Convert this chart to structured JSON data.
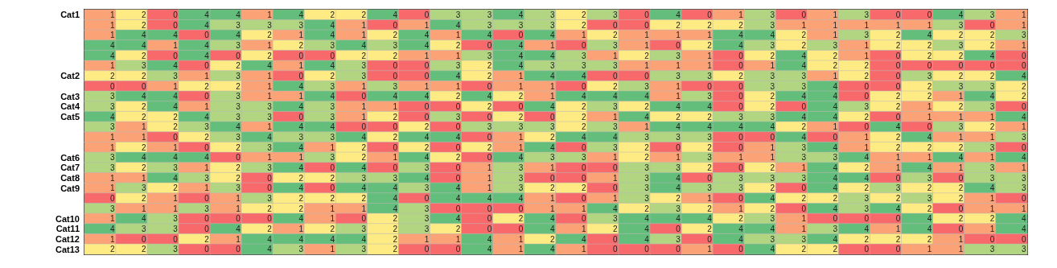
{
  "chart_data": {
    "type": "heatmap",
    "categories": [
      null,
      null,
      null,
      null,
      null,
      null,
      null,
      null,
      null,
      null,
      null,
      null,
      null,
      null,
      null,
      null,
      null,
      null,
      null,
      null,
      null,
      null,
      null,
      null,
      null,
      null,
      null,
      null,
      null,
      null
    ],
    "y_categories": [
      "Cat1",
      null,
      null,
      null,
      null,
      null,
      "Cat2",
      null,
      "Cat3",
      "Cat4",
      "Cat5",
      null,
      null,
      null,
      "Cat6",
      "Cat7",
      "Cat8",
      "Cat9",
      null,
      null,
      "Cat10",
      "Cat11",
      "Cat12",
      "Cat13"
    ],
    "cells": [
      [
        1,
        2,
        0,
        4,
        4,
        1,
        4,
        2,
        2,
        4,
        0,
        3,
        3,
        4,
        3,
        2,
        3,
        0,
        4,
        0,
        1,
        3,
        0,
        1,
        3,
        0,
        0,
        4,
        3,
        1
      ],
      [
        1,
        2,
        0,
        4,
        3,
        3,
        3,
        4,
        1,
        0,
        1,
        4,
        3,
        3,
        3,
        2,
        0,
        0,
        2,
        2,
        2,
        3,
        1,
        1,
        1,
        1,
        1,
        3,
        0,
        1
      ],
      [
        1,
        4,
        4,
        0,
        4,
        2,
        1,
        4,
        1,
        2,
        4,
        1,
        4,
        0,
        4,
        1,
        2,
        1,
        1,
        1,
        4,
        4,
        2,
        1,
        3,
        2,
        4,
        2,
        2,
        3
      ],
      [
        4,
        4,
        1,
        4,
        3,
        1,
        2,
        3,
        4,
        3,
        4,
        2,
        0,
        4,
        1,
        0,
        3,
        1,
        0,
        2,
        4,
        3,
        2,
        3,
        1,
        2,
        2,
        3,
        2,
        1
      ],
      [
        4,
        2,
        0,
        4,
        0,
        2,
        0,
        0,
        2,
        2,
        1,
        1,
        3,
        4,
        4,
        3,
        1,
        2,
        3,
        1,
        0,
        2,
        4,
        2,
        1,
        0,
        2,
        2,
        4,
        0
      ],
      [
        1,
        3,
        4,
        0,
        2,
        4,
        1,
        4,
        3,
        0,
        0,
        3,
        2,
        4,
        3,
        3,
        3,
        1,
        1,
        1,
        0,
        1,
        4,
        2,
        2,
        0,
        0,
        0,
        0,
        0
      ],
      [
        2,
        2,
        3,
        1,
        3,
        1,
        0,
        2,
        3,
        0,
        0,
        4,
        2,
        1,
        4,
        4,
        0,
        0,
        3,
        3,
        2,
        3,
        3,
        1,
        2,
        0,
        3,
        2,
        2,
        4
      ],
      [
        0,
        0,
        1,
        2,
        2,
        1,
        4,
        3,
        1,
        3,
        1,
        1,
        0,
        1,
        1,
        0,
        2,
        3,
        1,
        0,
        0,
        3,
        3,
        4,
        0,
        0,
        2,
        3,
        3,
        2
      ],
      [
        3,
        4,
        4,
        0,
        3,
        1,
        1,
        4,
        0,
        4,
        4,
        2,
        4,
        2,
        1,
        4,
        4,
        4,
        1,
        3,
        0,
        2,
        4,
        4,
        0,
        2,
        2,
        1,
        4,
        2
      ],
      [
        3,
        2,
        4,
        1,
        3,
        3,
        4,
        3,
        1,
        1,
        0,
        0,
        2,
        0,
        4,
        2,
        3,
        2,
        4,
        4,
        0,
        2,
        0,
        4,
        3,
        2,
        1,
        2,
        3,
        0
      ],
      [
        4,
        2,
        2,
        4,
        3,
        3,
        0,
        3,
        1,
        2,
        0,
        3,
        0,
        2,
        0,
        2,
        1,
        4,
        2,
        2,
        3,
        3,
        4,
        4,
        2,
        0,
        1,
        1,
        1,
        4
      ],
      [
        3,
        1,
        2,
        3,
        4,
        1,
        4,
        4,
        0,
        0,
        2,
        0,
        3,
        3,
        3,
        2,
        3,
        1,
        4,
        4,
        4,
        4,
        2,
        1,
        0,
        4,
        0,
        3,
        2,
        1
      ],
      [
        1,
        1,
        0,
        2,
        3,
        4,
        3,
        3,
        4,
        2,
        4,
        4,
        0,
        1,
        2,
        4,
        4,
        3,
        3,
        3,
        0,
        0,
        4,
        0,
        1,
        2,
        4,
        1,
        1,
        3
      ],
      [
        1,
        2,
        1,
        0,
        2,
        3,
        4,
        1,
        2,
        0,
        2,
        0,
        2,
        1,
        4,
        0,
        3,
        2,
        0,
        2,
        0,
        1,
        3,
        4,
        1,
        2,
        2,
        2,
        3,
        0
      ],
      [
        3,
        4,
        4,
        4,
        0,
        1,
        1,
        3,
        2,
        1,
        4,
        2,
        0,
        4,
        3,
        3,
        1,
        2,
        1,
        3,
        1,
        1,
        3,
        3,
        4,
        1,
        1,
        4,
        1,
        4
      ],
      [
        3,
        2,
        3,
        1,
        2,
        3,
        4,
        0,
        4,
        0,
        3,
        0,
        1,
        3,
        1,
        0,
        0,
        3,
        3,
        2,
        0,
        2,
        1,
        4,
        2,
        1,
        4,
        1,
        3,
        1
      ],
      [
        1,
        1,
        4,
        3,
        2,
        0,
        2,
        2,
        3,
        3,
        4,
        0,
        1,
        3,
        0,
        0,
        1,
        3,
        4,
        0,
        3,
        3,
        3,
        4,
        4,
        0,
        3,
        0,
        3,
        3
      ],
      [
        1,
        3,
        2,
        1,
        3,
        0,
        4,
        0,
        4,
        4,
        3,
        4,
        1,
        3,
        2,
        2,
        0,
        3,
        4,
        3,
        3,
        2,
        0,
        4,
        2,
        3,
        2,
        2,
        4,
        3
      ],
      [
        0,
        2,
        1,
        0,
        1,
        3,
        2,
        2,
        2,
        4,
        0,
        4,
        4,
        4,
        1,
        0,
        1,
        3,
        2,
        1,
        0,
        4,
        2,
        2,
        3,
        2,
        3,
        2,
        1,
        0
      ],
      [
        3,
        1,
        1,
        3,
        1,
        2,
        2,
        1,
        1,
        4,
        3,
        0,
        0,
        0,
        1,
        1,
        4,
        2,
        3,
        2,
        1,
        2,
        0,
        4,
        3,
        4,
        2,
        0,
        1,
        1
      ],
      [
        1,
        4,
        3,
        0,
        0,
        0,
        4,
        1,
        0,
        2,
        3,
        4,
        0,
        2,
        4,
        0,
        3,
        4,
        4,
        4,
        2,
        3,
        1,
        0,
        0,
        0,
        4,
        2,
        2,
        4
      ],
      [
        4,
        3,
        3,
        0,
        4,
        2,
        1,
        2,
        3,
        2,
        3,
        2,
        0,
        0,
        4,
        1,
        2,
        4,
        0,
        2,
        4,
        4,
        1,
        3,
        4,
        1,
        4,
        0,
        1,
        4
      ],
      [
        1,
        0,
        0,
        2,
        1,
        4,
        4,
        4,
        4,
        2,
        1,
        1,
        4,
        1,
        2,
        4,
        0,
        4,
        3,
        0,
        4,
        3,
        3,
        4,
        2,
        2,
        2,
        1,
        0,
        0
      ],
      [
        2,
        2,
        3,
        0,
        0,
        4,
        3,
        1,
        3,
        2,
        0,
        0,
        4,
        1,
        4,
        1,
        0,
        0,
        0,
        1,
        0,
        4,
        2,
        2,
        0,
        0,
        1,
        1,
        3,
        3
      ]
    ],
    "data_labels": true
  }
}
